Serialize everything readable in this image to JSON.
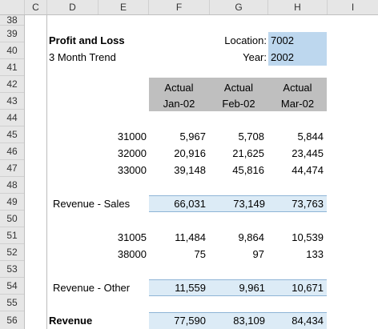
{
  "columns": [
    "C",
    "D",
    "E",
    "F",
    "G",
    "H",
    "I"
  ],
  "rows": [
    "38",
    "39",
    "40",
    "41",
    "42",
    "43",
    "44",
    "45",
    "46",
    "47",
    "48",
    "49",
    "50",
    "51",
    "52",
    "53",
    "54",
    "55",
    "56"
  ],
  "title": "Profit and Loss",
  "subtitle": "3 Month Trend",
  "location_label": "Location:",
  "location_value": "7002",
  "year_label": "Year:",
  "year_value": "2002",
  "header": {
    "line1": [
      "Actual",
      "Actual",
      "Actual"
    ],
    "line2": [
      "Jan-02",
      "Feb-02",
      "Mar-02"
    ]
  },
  "accounts_sales": [
    {
      "code": "31000",
      "values": [
        "5,967",
        "5,708",
        "5,844"
      ]
    },
    {
      "code": "32000",
      "values": [
        "20,916",
        "21,625",
        "23,445"
      ]
    },
    {
      "code": "33000",
      "values": [
        "39,148",
        "45,816",
        "44,474"
      ]
    }
  ],
  "revenue_sales": {
    "label": "Revenue - Sales",
    "values": [
      "66,031",
      "73,149",
      "73,763"
    ]
  },
  "accounts_other": [
    {
      "code": "31005",
      "values": [
        "11,484",
        "9,864",
        "10,539"
      ]
    },
    {
      "code": "38000",
      "values": [
        "75",
        "97",
        "133"
      ]
    }
  ],
  "revenue_other": {
    "label": "Revenue - Other",
    "values": [
      "11,559",
      "9,961",
      "10,671"
    ]
  },
  "revenue": {
    "label": "Revenue",
    "values": [
      "77,590",
      "83,109",
      "84,434"
    ]
  },
  "colors": {
    "header_grey": "#bfbfbf",
    "subtotal_blue": "#dcebf6",
    "input_blue": "#bdd7ee"
  }
}
